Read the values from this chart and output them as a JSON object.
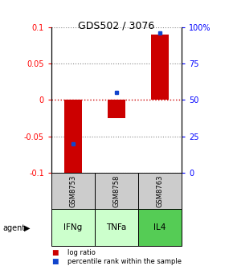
{
  "title": "GDS502 / 3076",
  "samples": [
    "GSM8753",
    "GSM8758",
    "GSM8763"
  ],
  "agents": [
    "IFNg",
    "TNFa",
    "IL4"
  ],
  "log_ratios": [
    -0.102,
    -0.025,
    0.09
  ],
  "percentile_ranks": [
    0.2,
    0.55,
    0.96
  ],
  "ylim": [
    -0.1,
    0.1
  ],
  "yticks_left": [
    -0.1,
    -0.05,
    0,
    0.05,
    0.1
  ],
  "ytick_labels_left": [
    "-0.1",
    "-0.05",
    "0",
    "0.05",
    "0.1"
  ],
  "ytick_labels_right": [
    "0",
    "25",
    "50",
    "75",
    "100%"
  ],
  "bar_color": "#cc0000",
  "dot_color": "#1144cc",
  "sample_bg": "#cccccc",
  "agent_bg_colors": [
    "#ccffcc",
    "#ccffcc",
    "#55cc55"
  ],
  "grid_color": "#888888",
  "zero_line_color": "#cc0000",
  "legend_bar_color": "#cc0000",
  "legend_dot_color": "#1144cc",
  "title_fontsize": 9,
  "bar_width": 0.4
}
